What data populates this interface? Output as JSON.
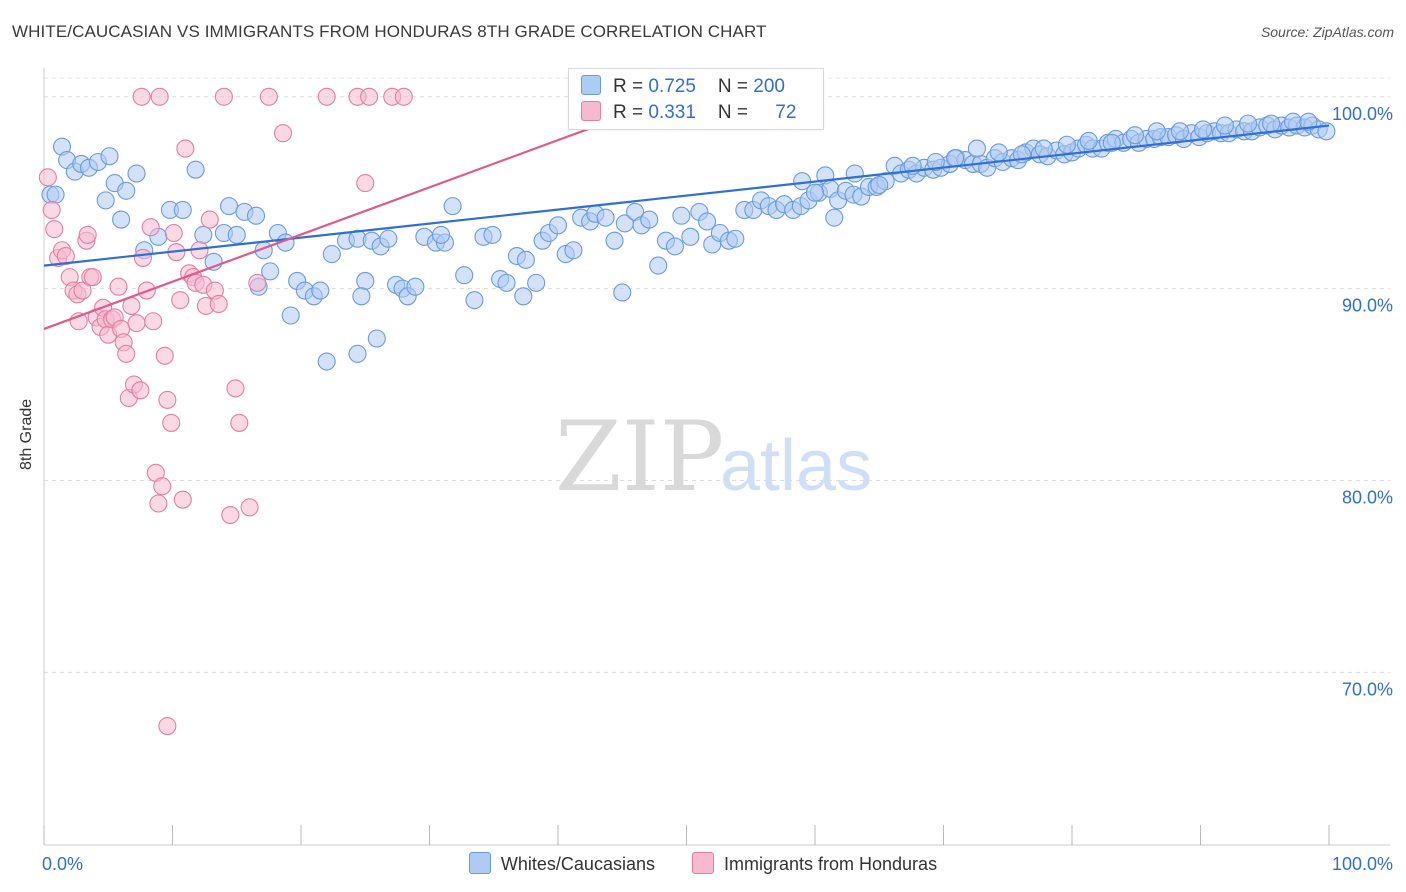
{
  "title": "WHITE/CAUCASIAN VS IMMIGRANTS FROM HONDURAS 8TH GRADE CORRELATION CHART",
  "source": "Source: ZipAtlas.com",
  "watermark": {
    "zip": "ZIP",
    "atlas": "atlas"
  },
  "legend_box": [
    {
      "r_label": "R = ",
      "r_value": "0.725",
      "n_label": "N = ",
      "n_value": "200",
      "color": "#aecbf3",
      "border": "#6a9be0"
    },
    {
      "r_label": "R = ",
      "r_value": "0.331",
      "n_label": "N = ",
      "n_value": "72",
      "color": "#f7b9ce",
      "border": "#e47ea3"
    }
  ],
  "chart_data": {
    "type": "scatter",
    "xlabel": "",
    "ylabel": "8th Grade",
    "x_ticks": [
      "0.0%",
      "100.0%"
    ],
    "y_ticks": [
      {
        "value": 100,
        "label": "100.0%"
      },
      {
        "value": 90,
        "label": "90.0%"
      },
      {
        "value": 80,
        "label": "80.0%"
      },
      {
        "value": 70,
        "label": "70.0%"
      }
    ],
    "xlim": [
      0,
      100
    ],
    "ylim": [
      61,
      101.5
    ],
    "grid": true,
    "legend_position": "bottom",
    "series": [
      {
        "name": "Whites/Caucasians",
        "color": "#6a9be0",
        "fill": "#aecbf3",
        "trend": {
          "x": [
            0,
            100
          ],
          "y": [
            91.2,
            98.5
          ],
          "color": "#2f6fd6"
        },
        "points": [
          [
            0.5,
            94.9
          ],
          [
            1.4,
            97.4
          ],
          [
            1.8,
            96.7
          ],
          [
            2.4,
            96.1
          ],
          [
            2.9,
            96.5
          ],
          [
            3.5,
            96.3
          ],
          [
            4.2,
            96.6
          ],
          [
            5.1,
            96.9
          ],
          [
            5.5,
            95.5
          ],
          [
            4.8,
            94.6
          ],
          [
            6.4,
            95.1
          ],
          [
            7.2,
            96.0
          ],
          [
            6.0,
            93.6
          ],
          [
            7.8,
            92.0
          ],
          [
            8.9,
            92.7
          ],
          [
            9.8,
            94.1
          ],
          [
            10.8,
            94.1
          ],
          [
            11.8,
            96.2
          ],
          [
            12.4,
            92.8
          ],
          [
            13.2,
            91.4
          ],
          [
            14.4,
            94.3
          ],
          [
            14.0,
            92.9
          ],
          [
            15.0,
            92.8
          ],
          [
            15.6,
            94.0
          ],
          [
            16.5,
            93.8
          ],
          [
            17.1,
            92.0
          ],
          [
            17.6,
            90.9
          ],
          [
            16.7,
            90.1
          ],
          [
            18.2,
            92.9
          ],
          [
            18.8,
            92.4
          ],
          [
            19.2,
            88.6
          ],
          [
            19.7,
            90.4
          ],
          [
            20.3,
            89.9
          ],
          [
            21.0,
            89.6
          ],
          [
            21.5,
            89.9
          ],
          [
            22.4,
            91.8
          ],
          [
            22.0,
            86.2
          ],
          [
            23.5,
            92.5
          ],
          [
            24.4,
            92.6
          ],
          [
            25.0,
            90.4
          ],
          [
            24.7,
            89.6
          ],
          [
            25.5,
            92.5
          ],
          [
            26.2,
            92.2
          ],
          [
            24.4,
            86.6
          ],
          [
            25.9,
            87.4
          ],
          [
            26.8,
            92.6
          ],
          [
            27.4,
            90.2
          ],
          [
            27.9,
            90.0
          ],
          [
            28.3,
            89.6
          ],
          [
            28.9,
            90.1
          ],
          [
            29.6,
            92.7
          ],
          [
            30.5,
            92.4
          ],
          [
            31.2,
            92.4
          ],
          [
            31.8,
            94.3
          ],
          [
            30.9,
            92.8
          ],
          [
            32.7,
            90.7
          ],
          [
            33.5,
            89.4
          ],
          [
            34.2,
            92.7
          ],
          [
            34.9,
            92.8
          ],
          [
            35.5,
            90.5
          ],
          [
            36.0,
            90.3
          ],
          [
            36.8,
            91.7
          ],
          [
            37.5,
            91.5
          ],
          [
            37.3,
            89.6
          ],
          [
            38.3,
            90.3
          ],
          [
            38.8,
            92.5
          ],
          [
            39.3,
            92.9
          ],
          [
            40.0,
            93.3
          ],
          [
            40.6,
            91.8
          ],
          [
            41.2,
            92.0
          ],
          [
            41.8,
            93.7
          ],
          [
            42.5,
            93.5
          ],
          [
            42.9,
            93.9
          ],
          [
            43.7,
            93.7
          ],
          [
            44.4,
            92.5
          ],
          [
            45.2,
            93.4
          ],
          [
            45.0,
            89.8
          ],
          [
            46.0,
            94.0
          ],
          [
            46.5,
            93.3
          ],
          [
            47.1,
            93.6
          ],
          [
            47.8,
            91.2
          ],
          [
            48.4,
            92.5
          ],
          [
            49.1,
            92.2
          ],
          [
            49.6,
            93.8
          ],
          [
            50.3,
            92.7
          ],
          [
            51.0,
            94.0
          ],
          [
            51.6,
            93.5
          ],
          [
            52.0,
            92.3
          ],
          [
            52.6,
            92.9
          ],
          [
            53.3,
            92.5
          ],
          [
            53.8,
            92.6
          ],
          [
            54.5,
            94.1
          ],
          [
            55.2,
            94.1
          ],
          [
            55.8,
            94.6
          ],
          [
            56.4,
            94.3
          ],
          [
            57.0,
            94.1
          ],
          [
            57.6,
            94.4
          ],
          [
            58.3,
            94.1
          ],
          [
            58.9,
            94.3
          ],
          [
            59.5,
            94.6
          ],
          [
            60.3,
            95.0
          ],
          [
            60.8,
            95.9
          ],
          [
            61.2,
            95.2
          ],
          [
            61.8,
            94.6
          ],
          [
            62.4,
            95.1
          ],
          [
            63.0,
            94.9
          ],
          [
            63.6,
            94.8
          ],
          [
            64.2,
            95.3
          ],
          [
            64.8,
            95.3
          ],
          [
            65.5,
            95.6
          ],
          [
            66.2,
            96.4
          ],
          [
            66.7,
            96.0
          ],
          [
            67.3,
            96.2
          ],
          [
            67.9,
            96.0
          ],
          [
            68.5,
            96.3
          ],
          [
            69.2,
            96.2
          ],
          [
            69.8,
            96.3
          ],
          [
            70.5,
            96.5
          ],
          [
            71.0,
            96.8
          ],
          [
            71.7,
            96.7
          ],
          [
            72.3,
            96.5
          ],
          [
            72.9,
            96.5
          ],
          [
            73.4,
            96.3
          ],
          [
            74.0,
            96.8
          ],
          [
            74.6,
            96.6
          ],
          [
            75.3,
            96.8
          ],
          [
            75.8,
            96.7
          ],
          [
            76.4,
            97.1
          ],
          [
            77.0,
            97.3
          ],
          [
            77.5,
            97.0
          ],
          [
            78.1,
            96.9
          ],
          [
            78.8,
            97.2
          ],
          [
            79.4,
            97.0
          ],
          [
            80.0,
            97.1
          ],
          [
            80.5,
            97.3
          ],
          [
            81.1,
            97.5
          ],
          [
            81.6,
            97.3
          ],
          [
            82.3,
            97.3
          ],
          [
            82.8,
            97.6
          ],
          [
            83.4,
            97.8
          ],
          [
            84.0,
            97.6
          ],
          [
            84.6,
            97.8
          ],
          [
            85.2,
            97.6
          ],
          [
            85.8,
            97.8
          ],
          [
            86.4,
            97.8
          ],
          [
            86.9,
            97.9
          ],
          [
            87.5,
            97.9
          ],
          [
            88.1,
            98.0
          ],
          [
            88.7,
            97.8
          ],
          [
            89.3,
            98.1
          ],
          [
            89.9,
            97.9
          ],
          [
            90.5,
            98.1
          ],
          [
            91.1,
            98.2
          ],
          [
            91.6,
            98.1
          ],
          [
            92.2,
            98.1
          ],
          [
            92.8,
            98.3
          ],
          [
            93.4,
            98.2
          ],
          [
            94.0,
            98.2
          ],
          [
            94.6,
            98.4
          ],
          [
            95.2,
            98.5
          ],
          [
            95.8,
            98.3
          ],
          [
            96.3,
            98.5
          ],
          [
            96.9,
            98.4
          ],
          [
            97.5,
            98.5
          ],
          [
            98.1,
            98.4
          ],
          [
            98.7,
            98.5
          ],
          [
            99.2,
            98.3
          ],
          [
            99.8,
            98.2
          ],
          [
            59.0,
            95.6
          ],
          [
            61.5,
            93.7
          ],
          [
            63.1,
            96.0
          ],
          [
            65.0,
            95.4
          ],
          [
            67.6,
            96.4
          ],
          [
            69.4,
            96.6
          ],
          [
            70.9,
            96.8
          ],
          [
            72.6,
            97.3
          ],
          [
            74.3,
            97.1
          ],
          [
            76.1,
            97.0
          ],
          [
            77.8,
            97.3
          ],
          [
            79.6,
            97.5
          ],
          [
            81.3,
            97.7
          ],
          [
            83.1,
            97.6
          ],
          [
            84.9,
            98.0
          ],
          [
            86.6,
            98.2
          ],
          [
            88.4,
            98.2
          ],
          [
            90.2,
            98.3
          ],
          [
            91.9,
            98.5
          ],
          [
            93.7,
            98.6
          ],
          [
            95.5,
            98.6
          ],
          [
            97.2,
            98.7
          ],
          [
            98.4,
            98.7
          ],
          [
            0.9,
            94.9
          ],
          [
            60.0,
            95.0
          ]
        ]
      },
      {
        "name": "Immigrants from Honduras",
        "color": "#e47ea3",
        "fill": "#f7b9ce",
        "trend": {
          "x": [
            0,
            50
          ],
          "y": [
            87.9,
            100.2
          ],
          "color": "#e05a8d"
        },
        "points": [
          [
            0.3,
            95.8
          ],
          [
            0.6,
            94.1
          ],
          [
            0.8,
            93.1
          ],
          [
            1.1,
            91.6
          ],
          [
            1.4,
            92.0
          ],
          [
            1.7,
            91.7
          ],
          [
            2.0,
            90.6
          ],
          [
            2.3,
            89.9
          ],
          [
            2.6,
            89.7
          ],
          [
            2.7,
            88.3
          ],
          [
            3.0,
            89.9
          ],
          [
            3.3,
            92.5
          ],
          [
            3.4,
            92.8
          ],
          [
            3.6,
            90.6
          ],
          [
            3.8,
            90.6
          ],
          [
            4.1,
            88.5
          ],
          [
            4.4,
            88.0
          ],
          [
            4.6,
            89.0
          ],
          [
            4.8,
            88.4
          ],
          [
            5.0,
            87.6
          ],
          [
            5.3,
            88.4
          ],
          [
            5.5,
            88.5
          ],
          [
            5.8,
            90.1
          ],
          [
            6.0,
            87.9
          ],
          [
            6.2,
            87.2
          ],
          [
            6.4,
            86.6
          ],
          [
            6.6,
            84.3
          ],
          [
            6.8,
            89.1
          ],
          [
            7.0,
            85.0
          ],
          [
            7.2,
            88.2
          ],
          [
            7.5,
            84.7
          ],
          [
            7.7,
            91.6
          ],
          [
            8.0,
            89.9
          ],
          [
            8.3,
            93.2
          ],
          [
            8.5,
            88.3
          ],
          [
            8.7,
            80.4
          ],
          [
            8.9,
            78.8
          ],
          [
            9.2,
            79.7
          ],
          [
            9.4,
            86.5
          ],
          [
            9.6,
            84.2
          ],
          [
            9.9,
            83.0
          ],
          [
            10.1,
            92.9
          ],
          [
            10.3,
            91.9
          ],
          [
            10.6,
            89.4
          ],
          [
            10.8,
            79.0
          ],
          [
            11.0,
            97.3
          ],
          [
            11.3,
            90.8
          ],
          [
            11.6,
            90.6
          ],
          [
            11.8,
            90.3
          ],
          [
            12.1,
            92.0
          ],
          [
            12.4,
            90.2
          ],
          [
            12.6,
            89.1
          ],
          [
            12.9,
            93.6
          ],
          [
            13.3,
            89.9
          ],
          [
            13.6,
            89.2
          ],
          [
            14.0,
            100.0
          ],
          [
            14.5,
            78.2
          ],
          [
            14.9,
            84.8
          ],
          [
            15.2,
            83.0
          ],
          [
            16.0,
            78.6
          ],
          [
            16.6,
            90.3
          ],
          [
            17.5,
            100.0
          ],
          [
            18.6,
            98.1
          ],
          [
            22.0,
            100.0
          ],
          [
            24.4,
            100.0
          ],
          [
            25.3,
            100.0
          ],
          [
            25.0,
            95.5
          ],
          [
            27.1,
            100.0
          ],
          [
            28.0,
            100.0
          ],
          [
            9.0,
            100.0
          ],
          [
            9.6,
            67.2
          ],
          [
            7.6,
            100.0
          ]
        ]
      }
    ]
  }
}
